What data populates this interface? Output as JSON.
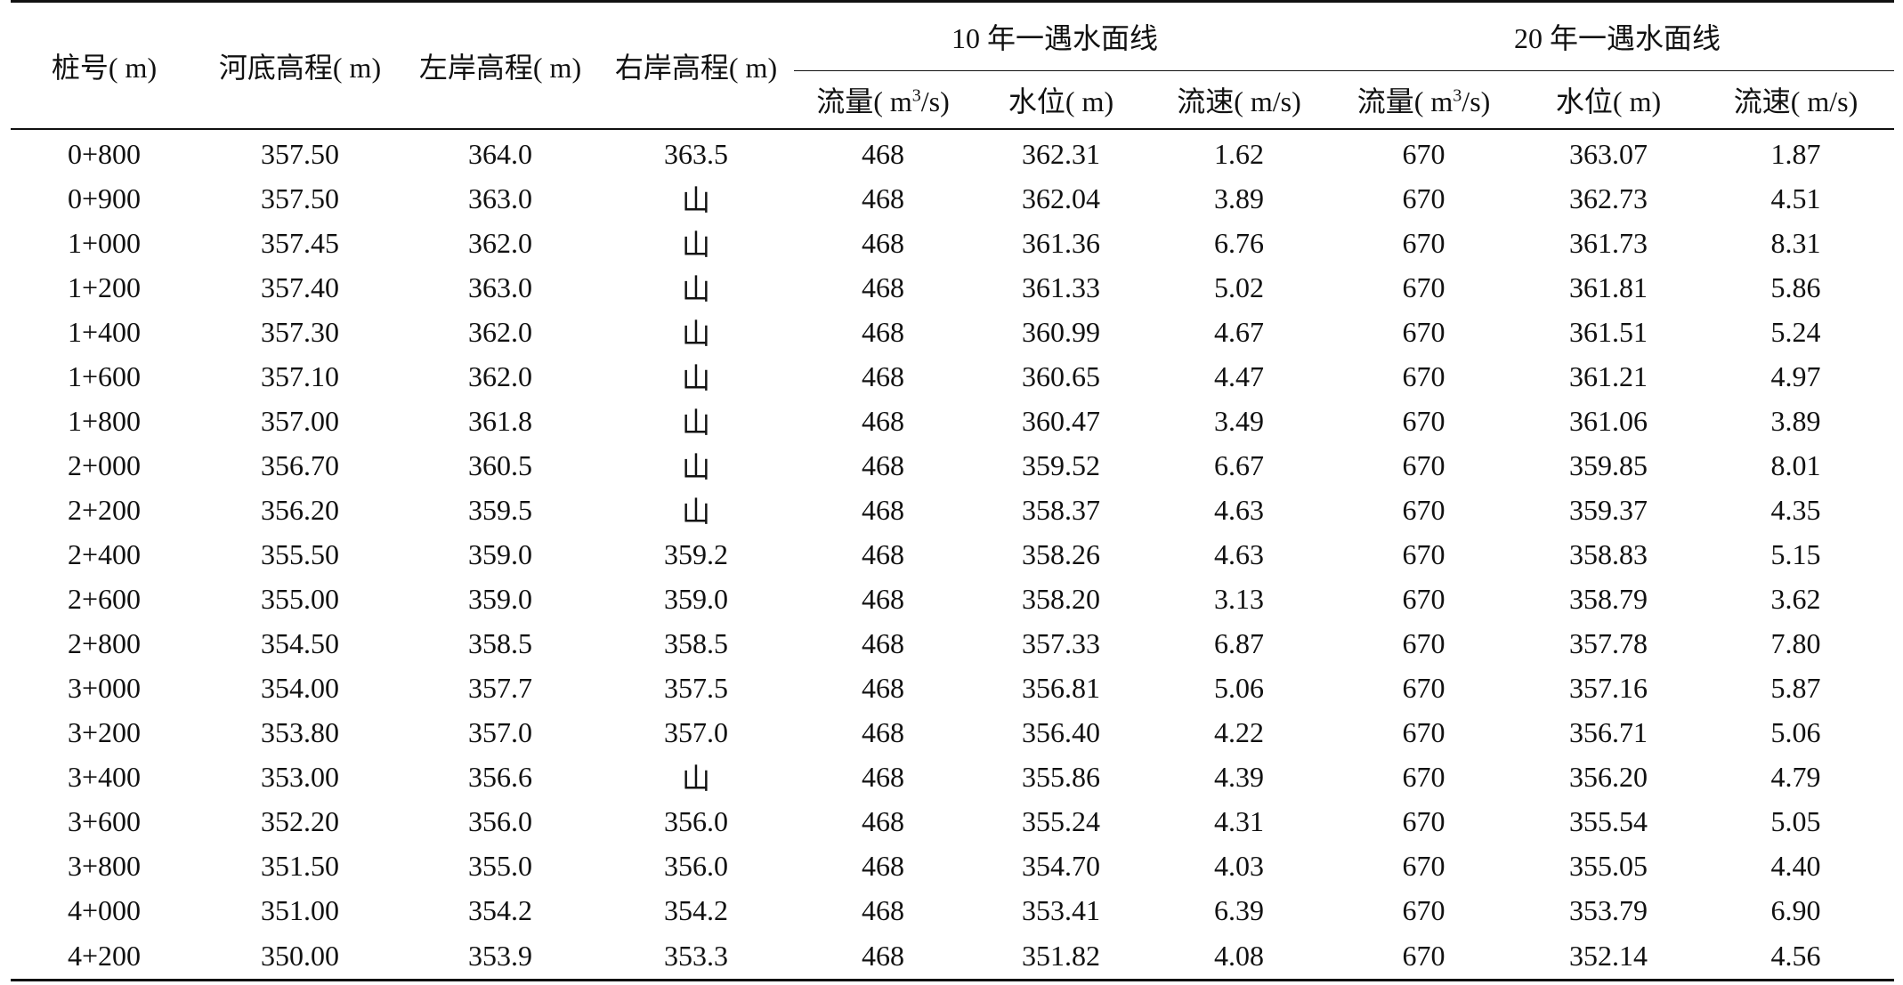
{
  "table": {
    "headers": {
      "station": "桩号( m)",
      "bed_elev": "河底高程( m)",
      "left_bank": "左岸高程( m)",
      "right_bank": "右岸高程( m)",
      "group10": "10 年一遇水面线",
      "group20": "20 年一遇水面线",
      "flow_prefix": "流量( m",
      "flow_sup": "3",
      "flow_suffix": "/s)",
      "level": "水位( m)",
      "velocity": "流速( m/s)"
    },
    "rows": [
      [
        "0+800",
        "357.50",
        "364.0",
        "363.5",
        "468",
        "362.31",
        "1.62",
        "670",
        "363.07",
        "1.87"
      ],
      [
        "0+900",
        "357.50",
        "363.0",
        "山",
        "468",
        "362.04",
        "3.89",
        "670",
        "362.73",
        "4.51"
      ],
      [
        "1+000",
        "357.45",
        "362.0",
        "山",
        "468",
        "361.36",
        "6.76",
        "670",
        "361.73",
        "8.31"
      ],
      [
        "1+200",
        "357.40",
        "363.0",
        "山",
        "468",
        "361.33",
        "5.02",
        "670",
        "361.81",
        "5.86"
      ],
      [
        "1+400",
        "357.30",
        "362.0",
        "山",
        "468",
        "360.99",
        "4.67",
        "670",
        "361.51",
        "5.24"
      ],
      [
        "1+600",
        "357.10",
        "362.0",
        "山",
        "468",
        "360.65",
        "4.47",
        "670",
        "361.21",
        "4.97"
      ],
      [
        "1+800",
        "357.00",
        "361.8",
        "山",
        "468",
        "360.47",
        "3.49",
        "670",
        "361.06",
        "3.89"
      ],
      [
        "2+000",
        "356.70",
        "360.5",
        "山",
        "468",
        "359.52",
        "6.67",
        "670",
        "359.85",
        "8.01"
      ],
      [
        "2+200",
        "356.20",
        "359.5",
        "山",
        "468",
        "358.37",
        "4.63",
        "670",
        "359.37",
        "4.35"
      ],
      [
        "2+400",
        "355.50",
        "359.0",
        "359.2",
        "468",
        "358.26",
        "4.63",
        "670",
        "358.83",
        "5.15"
      ],
      [
        "2+600",
        "355.00",
        "359.0",
        "359.0",
        "468",
        "358.20",
        "3.13",
        "670",
        "358.79",
        "3.62"
      ],
      [
        "2+800",
        "354.50",
        "358.5",
        "358.5",
        "468",
        "357.33",
        "6.87",
        "670",
        "357.78",
        "7.80"
      ],
      [
        "3+000",
        "354.00",
        "357.7",
        "357.5",
        "468",
        "356.81",
        "5.06",
        "670",
        "357.16",
        "5.87"
      ],
      [
        "3+200",
        "353.80",
        "357.0",
        "357.0",
        "468",
        "356.40",
        "4.22",
        "670",
        "356.71",
        "5.06"
      ],
      [
        "3+400",
        "353.00",
        "356.6",
        "山",
        "468",
        "355.86",
        "4.39",
        "670",
        "356.20",
        "4.79"
      ],
      [
        "3+600",
        "352.20",
        "356.0",
        "356.0",
        "468",
        "355.24",
        "4.31",
        "670",
        "355.54",
        "5.05"
      ],
      [
        "3+800",
        "351.50",
        "355.0",
        "356.0",
        "468",
        "354.70",
        "4.03",
        "670",
        "355.05",
        "4.40"
      ],
      [
        "4+000",
        "351.00",
        "354.2",
        "354.2",
        "468",
        "353.41",
        "6.39",
        "670",
        "353.79",
        "6.90"
      ],
      [
        "4+200",
        "350.00",
        "353.9",
        "353.3",
        "468",
        "351.82",
        "4.08",
        "670",
        "352.14",
        "4.56"
      ]
    ]
  }
}
